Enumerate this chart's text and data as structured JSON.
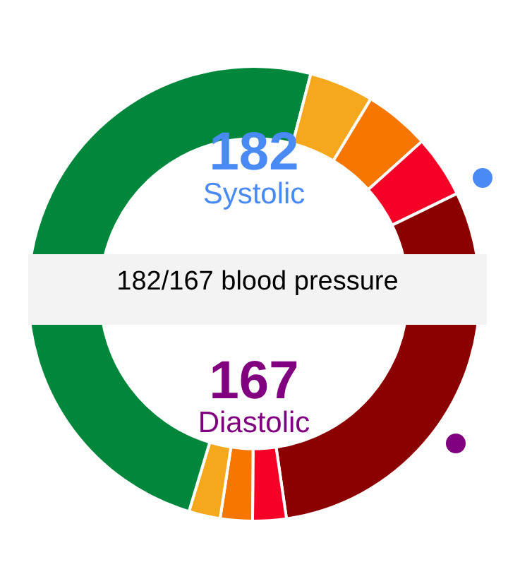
{
  "chart_data": [
    {
      "type": "donut",
      "title": "182/167 blood pressure",
      "annotations": [
        "182",
        "Systolic"
      ],
      "color": "#4a8af4",
      "categories": [
        null,
        null,
        null,
        null,
        null
      ],
      "values": [
        58.1,
        9.2,
        9.4,
        8.9,
        14.4
      ],
      "colors": [
        "#00873c",
        "#f5a81c",
        "#f77600",
        "#f60027",
        "#8b0000"
      ]
    },
    {
      "type": "donut",
      "annotations": [
        "167",
        "Diastolic"
      ],
      "color": "#800080",
      "categories": [
        null,
        null,
        null,
        null,
        null
      ],
      "values": [
        45.4,
        4.8,
        4.6,
        4.5,
        40.7
      ],
      "colors": [
        "#8b0000",
        "#f60027",
        "#f77600",
        "#f5a81c",
        "#00873c"
      ]
    }
  ]
}
